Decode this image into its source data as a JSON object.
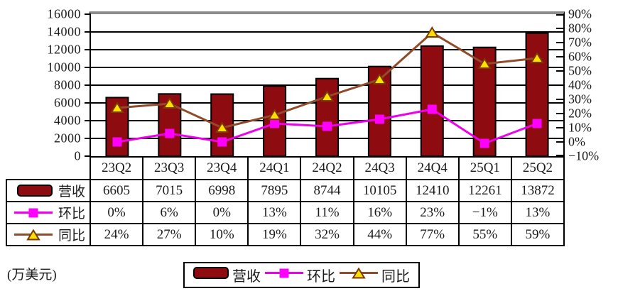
{
  "unit_label": "(万美元)",
  "chart_data": {
    "type": "bar+line combo",
    "title": "",
    "grid": "horizontal",
    "legend_position": "bottom",
    "categories": [
      "23Q2",
      "23Q3",
      "23Q4",
      "24Q1",
      "24Q2",
      "24Q3",
      "24Q4",
      "25Q1",
      "25Q2"
    ],
    "series": [
      {
        "key": "revenue",
        "name": "营收",
        "type": "bar",
        "axis": "left",
        "color": "#8e0b10",
        "border_color": "#000000",
        "values": [
          6605,
          7015,
          6998,
          7895,
          8744,
          10105,
          12410,
          12261,
          13872
        ],
        "display": [
          "6605",
          "7015",
          "6998",
          "7895",
          "8744",
          "10105",
          "12410",
          "12261",
          "13872"
        ]
      },
      {
        "key": "qoq",
        "name": "环比",
        "type": "line",
        "marker": "square",
        "axis": "right",
        "color": "#ee00ee",
        "marker_color": "#ff00ff",
        "values": [
          0,
          6,
          0,
          13,
          11,
          16,
          23,
          -1,
          13
        ],
        "display": [
          "0%",
          "6%",
          "0%",
          "13%",
          "11%",
          "16%",
          "23%",
          "−1%",
          "13%"
        ]
      },
      {
        "key": "yoy",
        "name": "同比",
        "type": "line",
        "marker": "triangle",
        "axis": "right",
        "color": "#8f4b2a",
        "marker_color": "#ffdf00",
        "marker_border": "#7a3b00",
        "values": [
          24,
          27,
          10,
          19,
          32,
          44,
          77,
          55,
          59
        ],
        "display": [
          "24%",
          "27%",
          "10%",
          "19%",
          "32%",
          "44%",
          "77%",
          "55%",
          "59%"
        ]
      }
    ],
    "left_axis": {
      "min": 0,
      "max": 16000,
      "step": 2000,
      "ticks": [
        "16000",
        "14000",
        "12000",
        "10000",
        "8000",
        "6000",
        "4000",
        "2000",
        "0"
      ]
    },
    "right_axis": {
      "min": -10,
      "max": 90,
      "step": 10,
      "ticks": [
        "90%",
        "80%",
        "70%",
        "60%",
        "50%",
        "40%",
        "30%",
        "20%",
        "10%",
        "0%",
        "−10%"
      ]
    }
  }
}
